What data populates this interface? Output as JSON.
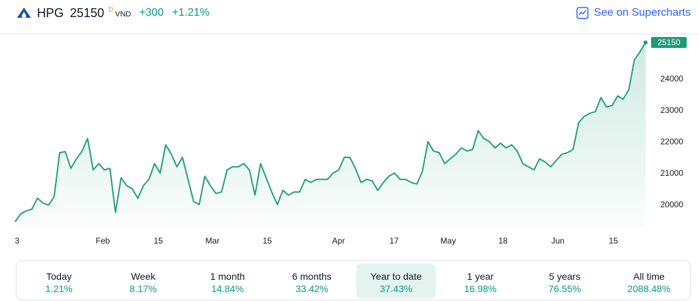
{
  "header": {
    "symbol": "HPG",
    "price": "25150",
    "price_flag": "D",
    "currency": "VND",
    "change": "+300",
    "change_percent": "+1.21%",
    "supercharts_label": "See on Supercharts",
    "logo_icon": "hpg-logo-icon",
    "supercharts_icon": "chart-line-icon"
  },
  "colors": {
    "line": "#22a07a",
    "positive": "#089981",
    "link": "#2962ff",
    "active_period_bg": "#e3f4ef",
    "price_flag": "#ff9800"
  },
  "chart_data": {
    "type": "area",
    "x_ticks": [
      "3",
      "Feb",
      "15",
      "Mar",
      "15",
      "Apr",
      "17",
      "May",
      "18",
      "Jun",
      "15"
    ],
    "y_ticks": [
      20000,
      21000,
      22000,
      23000,
      24000
    ],
    "ylim": [
      19400,
      25400
    ],
    "last_price_label": "25150",
    "values": [
      19450,
      19700,
      19800,
      19850,
      20200,
      20050,
      19980,
      20250,
      21650,
      21680,
      21150,
      21450,
      21700,
      22100,
      21100,
      21300,
      21100,
      21150,
      19750,
      20850,
      20600,
      20500,
      20200,
      20600,
      20800,
      21300,
      21000,
      21900,
      21600,
      21200,
      21500,
      20800,
      20100,
      20000,
      20900,
      20600,
      20350,
      20400,
      21100,
      21200,
      21200,
      21300,
      21100,
      20300,
      21300,
      20850,
      20400,
      20000,
      20450,
      20300,
      20400,
      20400,
      20800,
      20700,
      20800,
      20800,
      20800,
      21000,
      21100,
      21500,
      21500,
      21150,
      20700,
      20800,
      20750,
      20450,
      20700,
      20900,
      21000,
      20800,
      20800,
      20700,
      20650,
      21050,
      22000,
      21700,
      21650,
      21300,
      21450,
      21600,
      21800,
      21700,
      21750,
      22350,
      22100,
      22000,
      21800,
      21950,
      21800,
      21900,
      21700,
      21300,
      21200,
      21100,
      21450,
      21350,
      21200,
      21400,
      21600,
      21650,
      21750,
      22600,
      22800,
      22900,
      22950,
      23400,
      23100,
      23150,
      23450,
      23350,
      23650,
      24600,
      24850,
      25150
    ]
  },
  "periods": [
    {
      "label": "Today",
      "value": "1.21%",
      "active": false
    },
    {
      "label": "Week",
      "value": "8.17%",
      "active": false
    },
    {
      "label": "1 month",
      "value": "14.84%",
      "active": false
    },
    {
      "label": "6 months",
      "value": "33.42%",
      "active": false
    },
    {
      "label": "Year to date",
      "value": "37.43%",
      "active": true
    },
    {
      "label": "1 year",
      "value": "16.98%",
      "active": false
    },
    {
      "label": "5 years",
      "value": "76.55%",
      "active": false
    },
    {
      "label": "All time",
      "value": "2088.48%",
      "active": false
    }
  ]
}
